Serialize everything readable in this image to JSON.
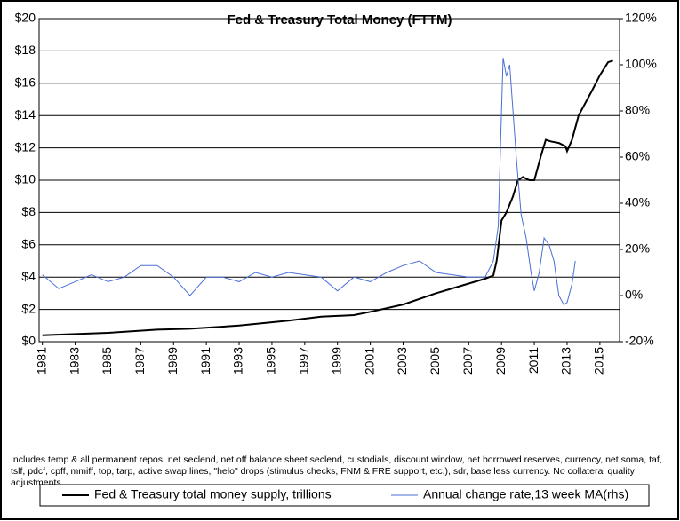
{
  "chart_data": {
    "type": "line",
    "title": "Fed & Treasury Total Money (FTTM)",
    "note": "Includes temp & all permanent repos, net seclend, net off balance sheet seclend, custodials, discount window, net borrowed reserves, currency, net soma, taf, tslf, pdcf, cpff, mmiff, top, tarp, active swap lines, \"helo\" drops (stimulus checks, FNM & FRE support, etc.), sdr, base less currency.  No collateral quality adjustments.",
    "xlim": [
      1980.8,
      2016.2
    ],
    "xticks": [
      1981,
      1983,
      1985,
      1987,
      1989,
      1991,
      1993,
      1995,
      1997,
      1999,
      2001,
      2003,
      2005,
      2007,
      2009,
      2011,
      2013,
      2015
    ],
    "ylim": [
      0,
      20
    ],
    "yticks": [
      {
        "value": 0,
        "label": "$0"
      },
      {
        "value": 2,
        "label": "$2"
      },
      {
        "value": 4,
        "label": "$4"
      },
      {
        "value": 6,
        "label": "$6"
      },
      {
        "value": 8,
        "label": "$8"
      },
      {
        "value": 10,
        "label": "$10"
      },
      {
        "value": 12,
        "label": "$12"
      },
      {
        "value": 14,
        "label": "$14"
      },
      {
        "value": 16,
        "label": "$16"
      },
      {
        "value": 18,
        "label": "$18"
      },
      {
        "value": 20,
        "label": "$20"
      }
    ],
    "y2lim": [
      -20,
      120
    ],
    "y2ticks": [
      {
        "value": -20,
        "label": "-20%"
      },
      {
        "value": 0,
        "label": "0%"
      },
      {
        "value": 20,
        "label": "20%"
      },
      {
        "value": 40,
        "label": "40%"
      },
      {
        "value": 60,
        "label": "60%"
      },
      {
        "value": 80,
        "label": "80%"
      },
      {
        "value": 100,
        "label": "100%"
      },
      {
        "value": 120,
        "label": "120%"
      }
    ],
    "grid": true,
    "series": [
      {
        "name": "Fed & Treasury total money supply, trillions",
        "color": "#000000",
        "x": [
          1981,
          1985,
          1988,
          1990,
          1993,
          1996,
          1998,
          2000,
          2001,
          2003,
          2005,
          2007,
          2008.0,
          2008.5,
          2008.7,
          2009.0,
          2009.3,
          2009.7,
          2010.0,
          2010.3,
          2010.7,
          2011.0,
          2011.4,
          2011.7,
          2012.0,
          2012.5,
          2012.9,
          2013.0,
          2013.3,
          2013.7,
          2014.5,
          2015.0,
          2015.5,
          2015.8
        ],
        "values": [
          0.4,
          0.55,
          0.75,
          0.8,
          1.0,
          1.3,
          1.55,
          1.65,
          1.85,
          2.3,
          3.0,
          3.6,
          3.9,
          4.1,
          5.0,
          7.5,
          8.0,
          9.0,
          10.0,
          10.2,
          10.0,
          10.0,
          11.5,
          12.5,
          12.4,
          12.3,
          12.1,
          11.8,
          12.5,
          14.0,
          15.5,
          16.5,
          17.3,
          17.4
        ]
      },
      {
        "name": "Annual change rate,13 week MA(rhs)",
        "color": "#4a6fd6",
        "axis": "y2",
        "x": [
          1981,
          1982,
          1983,
          1984,
          1985,
          1986,
          1987,
          1988,
          1989,
          1990,
          1991,
          1992,
          1993,
          1994,
          1995,
          1996,
          1997,
          1998,
          1999,
          2000,
          2001,
          2002,
          2003,
          2004,
          2005,
          2006,
          2007,
          2008.0,
          2008.5,
          2008.8,
          2009.0,
          2009.1,
          2009.3,
          2009.5,
          2009.7,
          2009.9,
          2010.2,
          2010.5,
          2010.8,
          2011.0,
          2011.3,
          2011.6,
          2011.9,
          2012.2,
          2012.5,
          2012.8,
          2013.0,
          2013.3,
          2013.5
        ],
        "values": [
          9,
          3,
          6,
          9,
          6,
          8,
          13,
          13,
          8,
          0,
          8,
          8,
          6,
          10,
          8,
          10,
          9,
          8,
          2,
          8,
          6,
          10,
          13,
          15,
          10,
          9,
          8,
          8,
          15,
          30,
          80,
          103,
          95,
          100,
          80,
          60,
          35,
          25,
          10,
          2,
          10,
          25,
          22,
          15,
          0,
          -4,
          -3,
          5,
          15
        ]
      }
    ]
  }
}
